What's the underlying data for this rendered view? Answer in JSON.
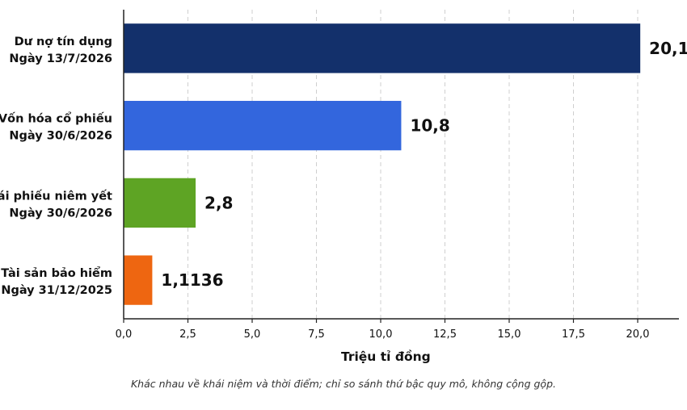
{
  "chart_data": {
    "type": "bar",
    "orientation": "horizontal",
    "categories": [
      [
        "Dư nợ tín dụng",
        "Ngày 13/7/2026"
      ],
      [
        "Vốn hóa cổ phiếu",
        "Ngày 30/6/2026"
      ],
      [
        "Trái phiếu niêm yết",
        "Ngày 30/6/2026"
      ],
      [
        "Tài sản bảo hiểm",
        "Ngày 31/12/2025"
      ]
    ],
    "values": [
      20.1,
      10.8,
      2.8,
      1.1136
    ],
    "value_labels": [
      "20,1",
      "10,8",
      "2,8",
      "1,1136"
    ],
    "colors": [
      "#13306b",
      "#3366dd",
      "#5ea424",
      "#ee6611"
    ],
    "xlim": [
      0,
      22
    ],
    "xticks": [
      0,
      2.5,
      5,
      7.5,
      10,
      12.5,
      15,
      17.5,
      20
    ],
    "xtick_labels": [
      "0,0",
      "2,5",
      "5,0",
      "7,5",
      "10,0",
      "12,5",
      "15,0",
      "17,5",
      "20,0"
    ],
    "xlabel": "Triệu tỉ đồng",
    "grid": "vertical-dashed"
  },
  "footnote": "Khác nhau về khái niệm và thời điểm; chỉ so sánh thứ bậc quy mô, không cộng gộp."
}
